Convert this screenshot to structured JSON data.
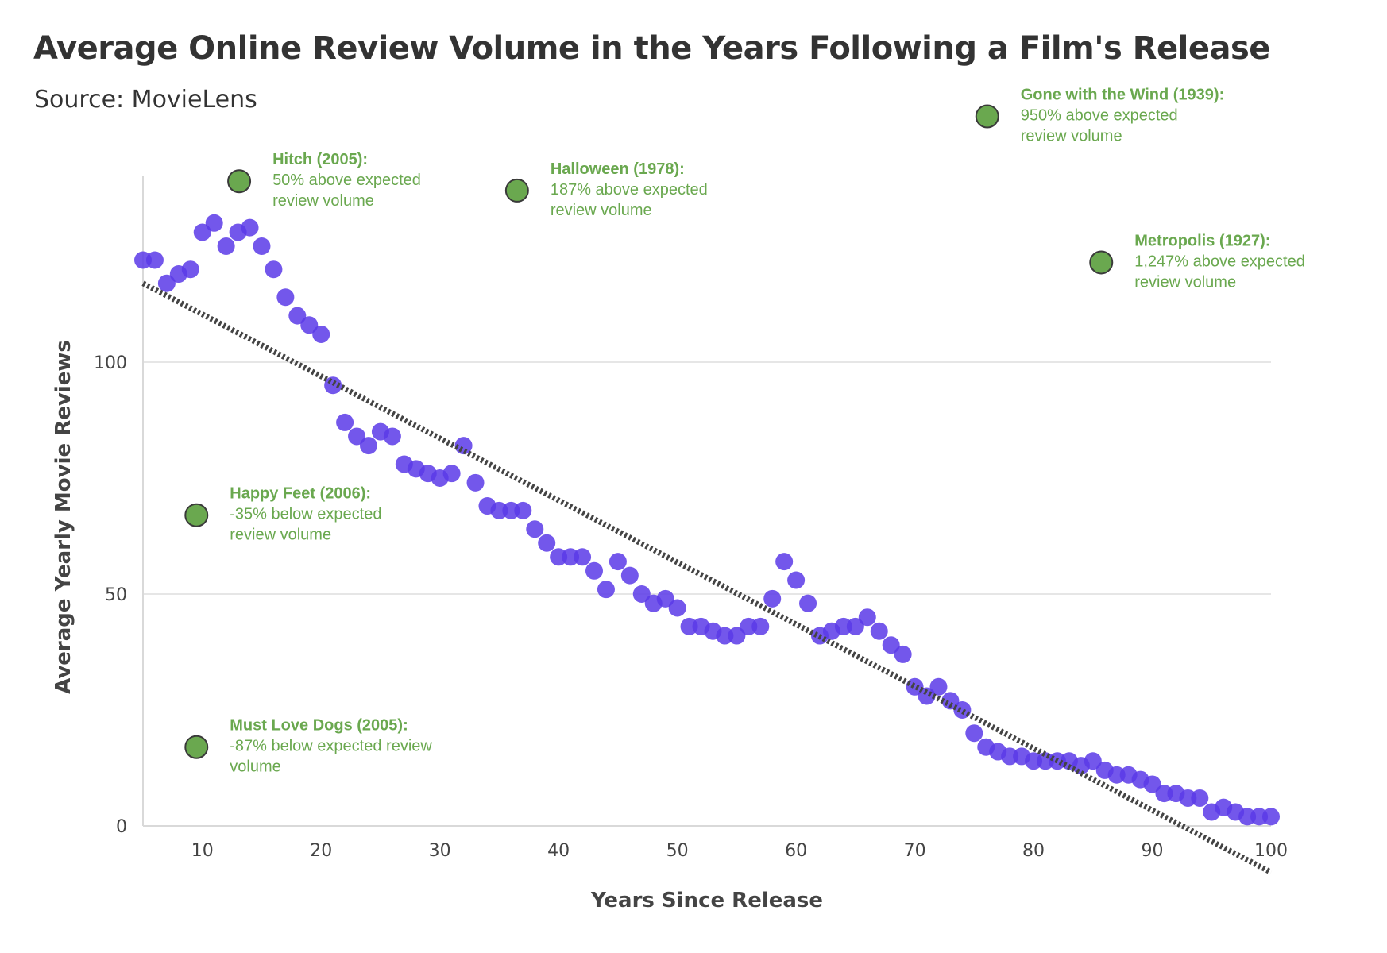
{
  "chart_data": {
    "type": "scatter",
    "title": "Average Online Review Volume in the Years Following a Film's Release",
    "subtitle": "Source: MovieLens",
    "xlabel": "Years Since Release",
    "ylabel": "Average Yearly Movie Reviews",
    "xlim": [
      5,
      100
    ],
    "ylim": [
      0,
      140
    ],
    "x_ticks": [
      10,
      20,
      30,
      40,
      50,
      60,
      70,
      80,
      90,
      100
    ],
    "y_ticks": [
      0,
      50,
      100
    ],
    "grid": "horizontal",
    "colors": {
      "points": "#5b3ae8",
      "trend": "#444444",
      "annotations": "#6aa84f",
      "gridlines": "#e6e6e6"
    },
    "series": [
      {
        "x": [
          5,
          6,
          7,
          8,
          9,
          10,
          11,
          12,
          13,
          14,
          15,
          16,
          17,
          18,
          19,
          20,
          21,
          22,
          23,
          24,
          25,
          26,
          27,
          28,
          29,
          30,
          31,
          32,
          33,
          34,
          35,
          36,
          37,
          38,
          39,
          40,
          41,
          42,
          43,
          44,
          45,
          46,
          47,
          48,
          49,
          50,
          51,
          52,
          53,
          54,
          55,
          56,
          57,
          58,
          59,
          60,
          61,
          62,
          63,
          64,
          65,
          66,
          67,
          68,
          69,
          70,
          71,
          72,
          73,
          74,
          75,
          76,
          77,
          78,
          79,
          80,
          81,
          82,
          83,
          84,
          85,
          86,
          87,
          88,
          89,
          90,
          91,
          92,
          93,
          94,
          95,
          96,
          97,
          98,
          99,
          100
        ],
        "y": [
          122,
          122,
          117,
          119,
          120,
          128,
          130,
          125,
          128,
          129,
          125,
          120,
          114,
          110,
          108,
          106,
          95,
          87,
          84,
          82,
          85,
          84,
          78,
          77,
          76,
          75,
          76,
          82,
          74,
          69,
          68,
          68,
          68,
          64,
          61,
          58,
          58,
          58,
          55,
          51,
          57,
          54,
          50,
          48,
          49,
          47,
          43,
          43,
          42,
          41,
          41,
          43,
          43,
          49,
          57,
          53,
          48,
          41,
          42,
          43,
          43,
          45,
          42,
          39,
          37,
          30,
          28,
          30,
          27,
          25,
          20,
          17,
          16,
          15,
          15,
          14,
          14,
          14,
          14,
          13,
          14,
          12,
          11,
          11,
          10,
          9,
          7,
          7,
          6,
          6,
          3,
          4,
          3,
          2,
          2,
          2
        ]
      }
    ],
    "trendline": {
      "x": [
        5,
        100
      ],
      "y": [
        117,
        -10
      ]
    },
    "annotations": [
      {
        "title": "Hitch (2005):",
        "lines": [
          "50% above expected",
          "review volume"
        ],
        "x": 13.1,
        "y": 139
      },
      {
        "title": "Halloween (1978):",
        "lines": [
          "187% above expected",
          "review volume"
        ],
        "x": 36.5,
        "y": 137
      },
      {
        "title": "Gone with the Wind (1939):",
        "lines": [
          "950% above expected",
          "review volume"
        ],
        "x": 76.1,
        "y": 153
      },
      {
        "title": "Metropolis (1927):",
        "lines": [
          "1,247% above expected",
          "review volume"
        ],
        "x": 85.7,
        "y": 121.5
      },
      {
        "title": "Happy Feet (2006):",
        "lines": [
          "-35% below expected",
          "review volume"
        ],
        "x": 9.5,
        "y": 67
      },
      {
        "title": "Must Love Dogs (2005):",
        "lines": [
          "-87% below expected review",
          "volume"
        ],
        "x": 9.5,
        "y": 17
      }
    ]
  }
}
